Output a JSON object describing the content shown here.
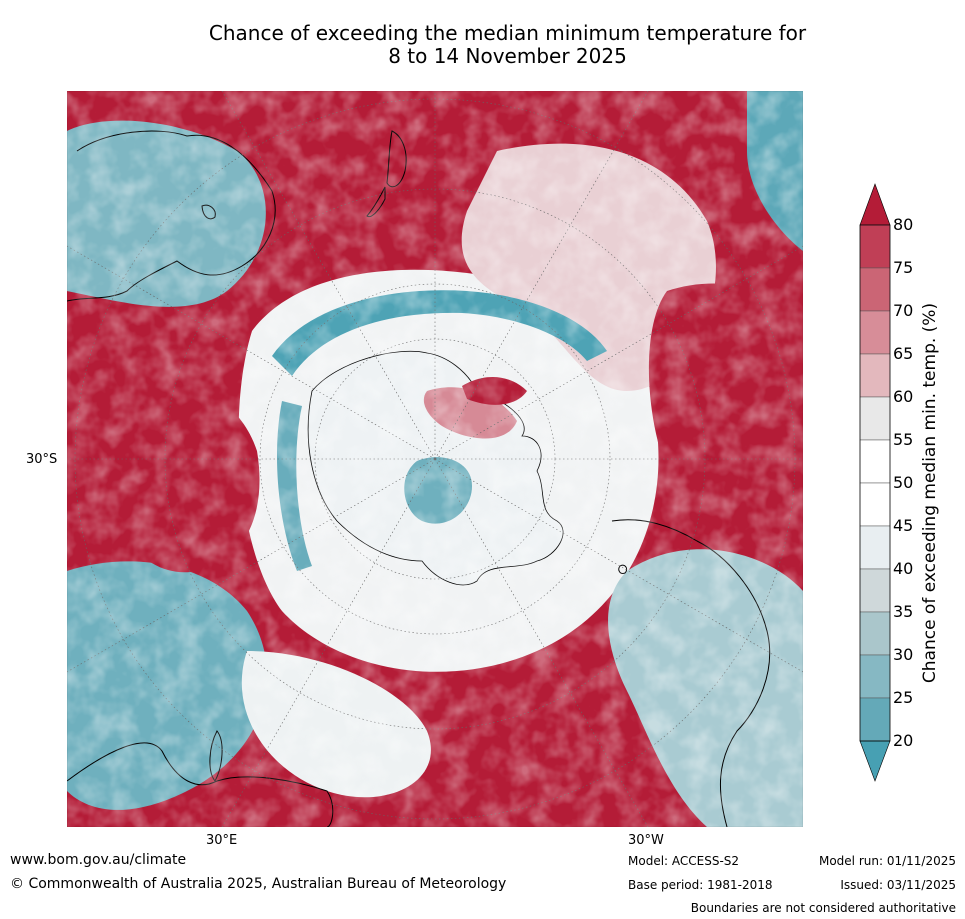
{
  "title": {
    "line1": "Chance of exceeding the median minimum temperature for",
    "line2": "8 to 14 November 2025"
  },
  "map": {
    "projection": "south-polar stereographic",
    "lat_labels": [
      "30°S"
    ],
    "lon_labels": [
      "30°E",
      "30°W"
    ],
    "colors": {
      "high": "#b41c37",
      "mid": "#ffffff",
      "low": "#47a0b3"
    }
  },
  "colorbar": {
    "title": "Chance of exceeding median min. temp. (%)",
    "ticks": [
      "80",
      "75",
      "70",
      "65",
      "60",
      "55",
      "50",
      "45",
      "40",
      "35",
      "30",
      "25",
      "20"
    ],
    "bands": [
      "#b41c37",
      "#c03f56",
      "#cb6575",
      "#d78d98",
      "#e3b8bd",
      "#e8e8e8",
      "#ffffff",
      "#ffffff",
      "#e8eef1",
      "#cfd8da",
      "#aac6cb",
      "#86b8c3",
      "#64a9b8",
      "#47a0b3"
    ]
  },
  "footer": {
    "url": "www.bom.gov.au/climate",
    "copyright": "© Commonwealth of Australia 2025, Australian Bureau of Meteorology",
    "model": "Model: ACCESS-S2",
    "base_period": "Base period: 1981-2018",
    "model_run": "Model run: 01/11/2025",
    "issued": "Issued: 03/11/2025",
    "boundaries_note": "Boundaries are not considered authoritative"
  }
}
